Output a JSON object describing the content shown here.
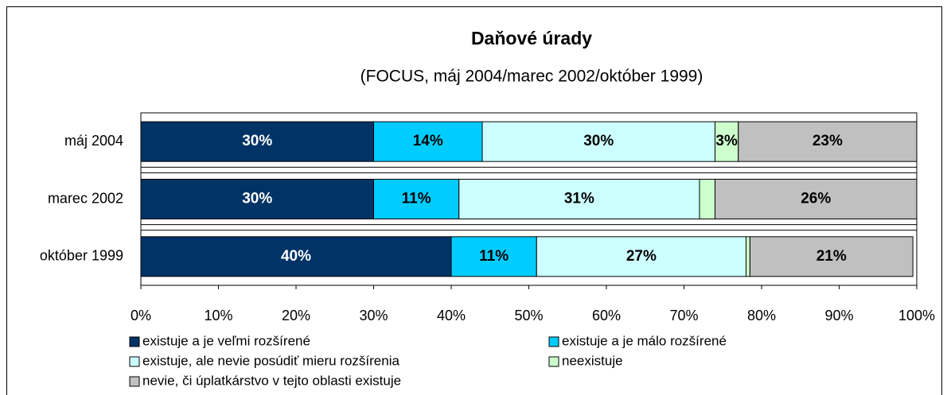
{
  "chart_data": {
    "type": "stacked-bar-horizontal",
    "title": "Daňové úrady",
    "subtitle": "(FOCUS, máj 2004/marec 2002/október 1999)",
    "categories": [
      "máj 2004",
      "marec 2002",
      "október 1999"
    ],
    "series": [
      {
        "name": "existuje a je veľmi rozšírené",
        "color": "#003366",
        "values": [
          30,
          30,
          40
        ],
        "value_labels": [
          "30%",
          "30%",
          "40%"
        ]
      },
      {
        "name": "existuje a je málo rozšírené",
        "color": "#00ccff",
        "values": [
          14,
          11,
          11
        ],
        "value_labels": [
          "14%",
          "11%",
          "11%"
        ]
      },
      {
        "name": "existuje, ale nevie posúdiť mieru rozšírenia",
        "color": "#ccffff",
        "values": [
          30,
          31,
          27
        ],
        "value_labels": [
          "30%",
          "31%",
          "27%"
        ]
      },
      {
        "name": "neexistuje",
        "color": "#ccffcc",
        "values": [
          3,
          2,
          0.5
        ],
        "value_labels": [
          "3%",
          null,
          null
        ]
      },
      {
        "name": "nevie, či úplatkárstvo v tejto oblasti existuje",
        "color": "#c0c0c0",
        "values": [
          23,
          26,
          21
        ],
        "value_labels": [
          "23%",
          "26%",
          "21%"
        ]
      }
    ],
    "xlim": [
      0,
      100
    ],
    "xticks": [
      {
        "value": 0,
        "label": "0%"
      },
      {
        "value": 10,
        "label": "10%"
      },
      {
        "value": 20,
        "label": "20%"
      },
      {
        "value": 30,
        "label": "30%"
      },
      {
        "value": 40,
        "label": "40%"
      },
      {
        "value": 50,
        "label": "50%"
      },
      {
        "value": 60,
        "label": "60%"
      },
      {
        "value": 70,
        "label": "70%"
      },
      {
        "value": 80,
        "label": "80%"
      },
      {
        "value": 90,
        "label": "90%"
      },
      {
        "value": 100,
        "label": "100%"
      }
    ],
    "legend": "bottom"
  }
}
